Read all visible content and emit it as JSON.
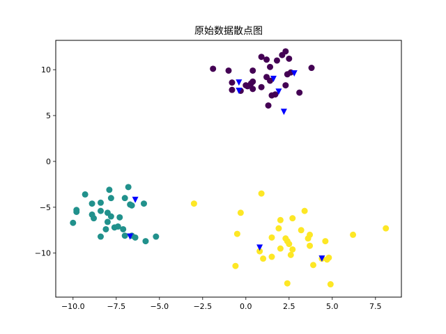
{
  "chart_data": {
    "type": "scatter",
    "title": "原始数据散点图",
    "xlabel": "",
    "ylabel": "",
    "xlim": [
      -11.0,
      9.0
    ],
    "ylim": [
      -14.8,
      13.2
    ],
    "xticks": [
      -10.0,
      -7.5,
      -5.0,
      -2.5,
      0.0,
      2.5,
      5.0,
      7.5
    ],
    "xtick_labels": [
      "−10.0",
      "−7.5",
      "−5.0",
      "−2.5",
      "0.0",
      "2.5",
      "5.0",
      "7.5"
    ],
    "yticks": [
      -10,
      -5,
      0,
      5,
      10
    ],
    "ytick_labels": [
      "−10",
      "−5",
      "0",
      "5",
      "10"
    ],
    "grid": false,
    "series": [
      {
        "marker": "circle",
        "color": "#440154",
        "points": [
          [
            -1.9,
            10.1
          ],
          [
            -1.0,
            9.9
          ],
          [
            -0.8,
            8.6
          ],
          [
            -0.8,
            7.8
          ],
          [
            -0.3,
            7.7
          ],
          [
            0.0,
            8.3
          ],
          [
            0.1,
            8.2
          ],
          [
            0.3,
            8.5
          ],
          [
            0.4,
            8.7
          ],
          [
            0.4,
            7.9
          ],
          [
            0.4,
            9.9
          ],
          [
            0.9,
            8.1
          ],
          [
            0.9,
            11.4
          ],
          [
            1.2,
            9.2
          ],
          [
            1.2,
            11.1
          ],
          [
            1.3,
            6.1
          ],
          [
            1.4,
            10.3
          ],
          [
            1.4,
            8.8
          ],
          [
            1.5,
            7.2
          ],
          [
            1.7,
            7.3
          ],
          [
            1.8,
            11.0
          ],
          [
            2.1,
            11.6
          ],
          [
            2.3,
            12.0
          ],
          [
            2.3,
            8.3
          ],
          [
            2.4,
            9.5
          ],
          [
            2.5,
            11.2
          ],
          [
            2.6,
            9.7
          ],
          [
            3.1,
            7.5
          ],
          [
            3.8,
            10.2
          ]
        ]
      },
      {
        "marker": "circle",
        "color": "#21918c",
        "points": [
          [
            -10.0,
            -6.7
          ],
          [
            -9.8,
            -5.5
          ],
          [
            -9.8,
            -5.3
          ],
          [
            -9.3,
            -3.6
          ],
          [
            -8.9,
            -5.8
          ],
          [
            -8.9,
            -4.6
          ],
          [
            -8.8,
            -6.2
          ],
          [
            -8.4,
            -8.2
          ],
          [
            -8.4,
            -4.5
          ],
          [
            -8.4,
            -5.4
          ],
          [
            -8.1,
            -7.4
          ],
          [
            -8.0,
            -6.6
          ],
          [
            -8.0,
            -5.6
          ],
          [
            -7.9,
            -3.1
          ],
          [
            -7.8,
            -4.0
          ],
          [
            -7.8,
            -6.0
          ],
          [
            -7.6,
            -7.2
          ],
          [
            -7.4,
            -7.1
          ],
          [
            -7.3,
            -6.1
          ],
          [
            -7.1,
            -7.4
          ],
          [
            -7.0,
            -8.1
          ],
          [
            -7.0,
            -4.0
          ],
          [
            -6.8,
            -2.8
          ],
          [
            -6.7,
            -4.7
          ],
          [
            -6.6,
            -4.8
          ],
          [
            -6.6,
            -8.1
          ],
          [
            -6.4,
            -8.3
          ],
          [
            -5.9,
            -4.6
          ],
          [
            -5.8,
            -8.7
          ],
          [
            -5.2,
            -8.2
          ]
        ]
      },
      {
        "marker": "circle",
        "color": "#fde725",
        "points": [
          [
            -3.0,
            -4.6
          ],
          [
            -0.6,
            -11.4
          ],
          [
            -0.5,
            -7.9
          ],
          [
            -0.3,
            -5.6
          ],
          [
            0.8,
            -9.8
          ],
          [
            0.9,
            -3.5
          ],
          [
            1.0,
            -10.6
          ],
          [
            1.5,
            -10.4
          ],
          [
            1.5,
            -8.3
          ],
          [
            1.9,
            -7.3
          ],
          [
            2.0,
            -6.4
          ],
          [
            2.0,
            -9.5
          ],
          [
            2.3,
            -8.4
          ],
          [
            2.4,
            -13.3
          ],
          [
            2.4,
            -8.7
          ],
          [
            2.5,
            -9.0
          ],
          [
            2.6,
            -10.2
          ],
          [
            2.7,
            -6.2
          ],
          [
            2.7,
            -9.6
          ],
          [
            3.2,
            -7.5
          ],
          [
            3.4,
            -5.4
          ],
          [
            3.6,
            -8.4
          ],
          [
            3.7,
            -8.0
          ],
          [
            3.7,
            -9.2
          ],
          [
            3.9,
            -11.3
          ],
          [
            4.4,
            -10.6
          ],
          [
            4.6,
            -8.7
          ],
          [
            4.7,
            -10.7
          ],
          [
            4.8,
            -10.5
          ],
          [
            4.9,
            -13.4
          ],
          [
            6.2,
            -8.0
          ],
          [
            8.1,
            -7.3
          ]
        ]
      },
      {
        "marker": "triangle-down",
        "color": "#0000ff",
        "points": [
          [
            -0.4,
            8.6
          ],
          [
            -0.4,
            7.7
          ],
          [
            1.6,
            9.0
          ],
          [
            1.9,
            7.6
          ],
          [
            2.2,
            5.4
          ],
          [
            2.8,
            9.6
          ],
          [
            -6.4,
            -4.2
          ],
          [
            -6.7,
            -8.2
          ],
          [
            0.8,
            -9.4
          ],
          [
            4.4,
            -10.6
          ]
        ]
      }
    ]
  }
}
